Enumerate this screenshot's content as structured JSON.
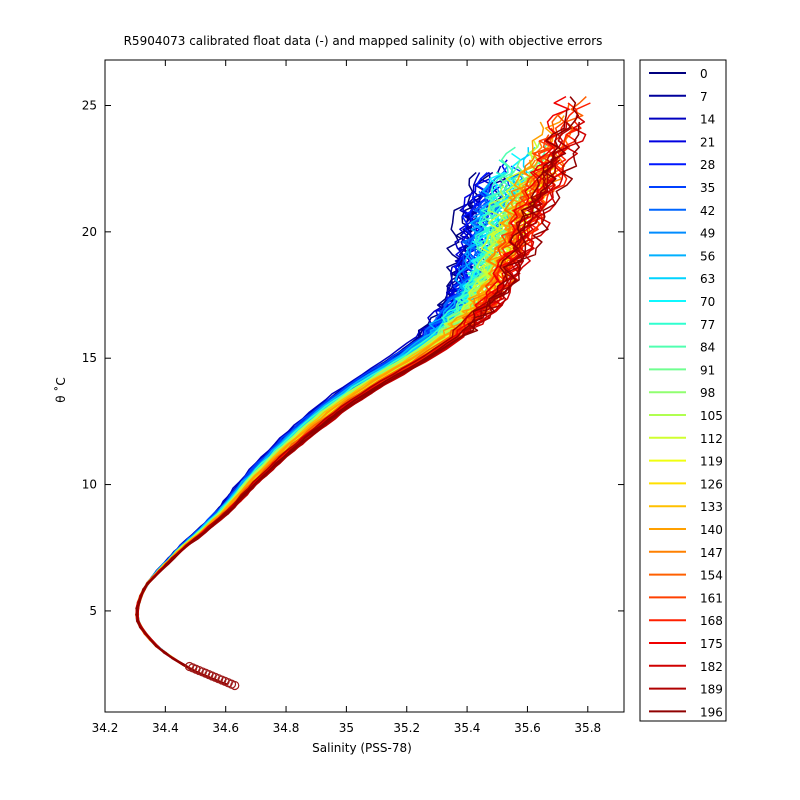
{
  "chart_data": {
    "type": "line",
    "title": "R5904073 calibrated float data (-) and mapped salinity (o) with objective errors",
    "xlabel": "Salinity (PSS-78)",
    "ylabel": "θ ˚C",
    "xlim": [
      34.2,
      35.92
    ],
    "ylim": [
      1.0,
      26.8
    ],
    "xticks": [
      34.2,
      34.4,
      34.6,
      34.8,
      35.0,
      35.2,
      35.4,
      35.6,
      35.8
    ],
    "xtick_labels": [
      "34.2",
      "34.4",
      "34.6",
      "34.8",
      "35",
      "35.2",
      "35.4",
      "35.6",
      "35.8"
    ],
    "yticks": [
      5,
      10,
      15,
      20,
      25
    ],
    "ytick_labels": [
      "5",
      "10",
      "15",
      "20",
      "25"
    ],
    "grid": false,
    "legend_position": "right-outside",
    "mapped_salinity_markers": {
      "s_range": [
        34.48,
        34.63
      ],
      "theta_range": [
        2.05,
        2.8
      ],
      "color": "#9e1a1a"
    },
    "base_curve": {
      "theta": [
        2.1,
        2.6,
        3.0,
        3.5,
        4.0,
        4.5,
        5.0,
        5.5,
        6.0,
        6.5,
        7.0,
        7.5,
        8.0,
        9.0,
        10.0,
        11.0,
        12.0,
        13.0,
        14.0,
        15.0,
        16.0,
        17.0,
        18.0,
        19.0,
        20.0,
        21.0,
        22.0,
        23.0,
        24.0,
        25.0
      ],
      "salinity": [
        34.6,
        34.5,
        34.44,
        34.38,
        34.34,
        34.31,
        34.305,
        34.315,
        34.335,
        34.37,
        34.41,
        34.45,
        34.5,
        34.59,
        34.66,
        34.74,
        34.83,
        34.93,
        35.05,
        35.19,
        35.31,
        35.39,
        35.44,
        35.47,
        35.5,
        35.53,
        35.57,
        35.6,
        35.63,
        35.66
      ]
    },
    "series": [
      {
        "name": "0",
        "color": "#00007f"
      },
      {
        "name": "7",
        "color": "#00009c"
      },
      {
        "name": "14",
        "color": "#0000c0"
      },
      {
        "name": "21",
        "color": "#0000e0"
      },
      {
        "name": "28",
        "color": "#0018ff"
      },
      {
        "name": "35",
        "color": "#0040ff"
      },
      {
        "name": "42",
        "color": "#0066ff"
      },
      {
        "name": "49",
        "color": "#008cff"
      },
      {
        "name": "56",
        "color": "#00b0ff"
      },
      {
        "name": "63",
        "color": "#00d4ff"
      },
      {
        "name": "70",
        "color": "#0ff8ff"
      },
      {
        "name": "77",
        "color": "#30ffd0"
      },
      {
        "name": "84",
        "color": "#50ffb0"
      },
      {
        "name": "91",
        "color": "#70ff90"
      },
      {
        "name": "98",
        "color": "#90ff70"
      },
      {
        "name": "105",
        "color": "#b0ff50"
      },
      {
        "name": "112",
        "color": "#d0ff30"
      },
      {
        "name": "119",
        "color": "#f0ff10"
      },
      {
        "name": "126",
        "color": "#ffe000"
      },
      {
        "name": "133",
        "color": "#ffc000"
      },
      {
        "name": "140",
        "color": "#ffa000"
      },
      {
        "name": "147",
        "color": "#ff8000"
      },
      {
        "name": "154",
        "color": "#ff6000"
      },
      {
        "name": "161",
        "color": "#ff4000"
      },
      {
        "name": "168",
        "color": "#ff2000"
      },
      {
        "name": "175",
        "color": "#f00000"
      },
      {
        "name": "182",
        "color": "#d00000"
      },
      {
        "name": "189",
        "color": "#b00000"
      },
      {
        "name": "196",
        "color": "#900000"
      }
    ]
  }
}
